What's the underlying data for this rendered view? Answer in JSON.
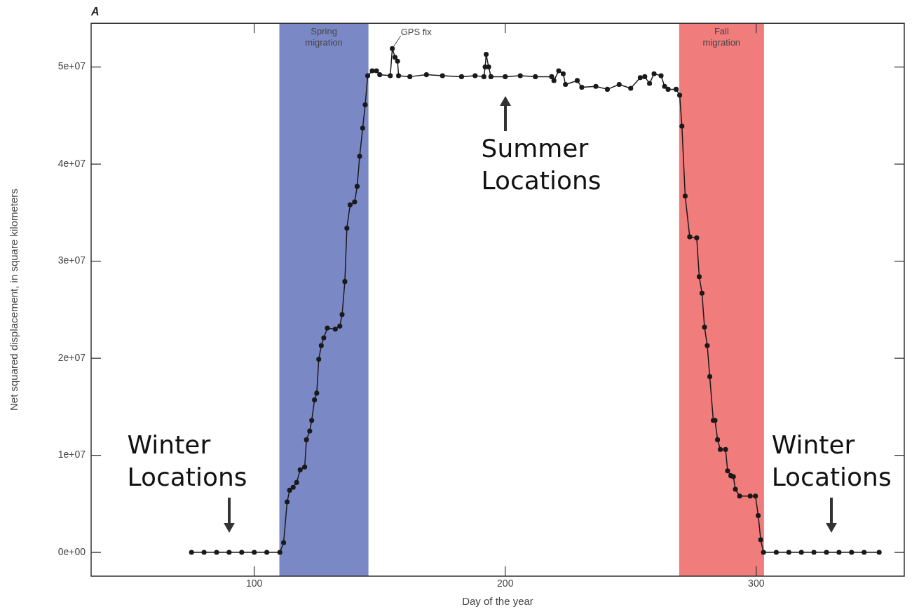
{
  "chart_data": {
    "type": "line",
    "title": "A",
    "xlabel": "Day of the year",
    "ylabel": "Net squared displacement, in square kilometers",
    "x": [
      75,
      80,
      85,
      90,
      95,
      100,
      105,
      110.2,
      111.7,
      113.1,
      114.1,
      115.5,
      116.9,
      118.3,
      120.1,
      120.8,
      122.1,
      122.9,
      124,
      124.9,
      125.7,
      126.7,
      127.7,
      129.1,
      132.3,
      134.1,
      135,
      136.1,
      136.9,
      138.2,
      140,
      141,
      142,
      143.2,
      144.2,
      145.2,
      147,
      148.7,
      150,
      154.2,
      155,
      156.1,
      157.1,
      157.5,
      162,
      168.6,
      175,
      182.6,
      188,
      191.5,
      192,
      192.4,
      193.4,
      194.3,
      200,
      206,
      212,
      218.5,
      219.4,
      221.3,
      223.1,
      224,
      228.7,
      230.5,
      236.1,
      240.7,
      245.4,
      250,
      253.8,
      255.6,
      257.5,
      259.3,
      262.1,
      263.5,
      264.9,
      268.1,
      269.5,
      270.4,
      271.7,
      273.5,
      276.3,
      277.3,
      278.4,
      279.4,
      280.5,
      281.5,
      282.9,
      283.6,
      284.6,
      285.7,
      287.8,
      288.6,
      289.9,
      290.9,
      291.7,
      293.4,
      297.6,
      299.7,
      300.8,
      301.8,
      302.9,
      308,
      313,
      318,
      323,
      328,
      333,
      338,
      343,
      349
    ],
    "values": [
      0,
      0,
      0,
      0,
      0,
      0,
      0,
      0,
      1000000,
      5200000,
      6400000,
      6700000,
      7200000,
      8500000,
      8800000,
      11600000,
      12500000,
      13600000,
      15700000,
      16400000,
      19900000,
      21300000,
      22100000,
      23100000,
      23000000,
      23300000,
      24500000,
      27900000,
      33400000,
      35800000,
      36100000,
      37700000,
      40800000,
      43700000,
      46100000,
      49100000,
      49600000,
      49600000,
      49200000,
      49100000,
      51900000,
      51000000,
      50600000,
      49100000,
      49000000,
      49200000,
      49100000,
      49000000,
      49100000,
      49000000,
      50000000,
      51300000,
      50000000,
      49000000,
      49000000,
      49100000,
      49000000,
      49000000,
      48600000,
      49600000,
      49300000,
      48200000,
      48600000,
      47900000,
      48000000,
      47700000,
      48200000,
      47800000,
      48900000,
      49000000,
      48300000,
      49300000,
      49100000,
      48000000,
      47700000,
      47700000,
      47100000,
      43900000,
      36700000,
      32500000,
      32400000,
      28400000,
      26700000,
      23200000,
      21300000,
      18100000,
      13600000,
      13600000,
      11600000,
      10600000,
      10600000,
      8400000,
      7900000,
      7800000,
      6500000,
      5800000,
      5800000,
      5800000,
      3800000,
      1300000,
      0,
      0,
      0,
      0,
      0,
      0,
      0,
      0,
      0,
      0
    ],
    "color": "#1a1a1a",
    "marker": "circle",
    "line_style": "solid",
    "grid": false,
    "legend": false,
    "xlim": [
      35,
      359
    ],
    "xticks": [
      100,
      200,
      300
    ],
    "ylim": [
      -2450000,
      54500000
    ],
    "yticks": [
      {
        "value": 0,
        "label": "0e+00"
      },
      {
        "value": 10000000,
        "label": "1e+07"
      },
      {
        "value": 20000000,
        "label": "2e+07"
      },
      {
        "value": 30000000,
        "label": "3e+07"
      },
      {
        "value": 40000000,
        "label": "4e+07"
      },
      {
        "value": 50000000,
        "label": "5e+07"
      }
    ],
    "bands": [
      {
        "axis": "x",
        "from": 110,
        "to": 145.5,
        "label": "Spring migration",
        "color": "#7b88c6"
      },
      {
        "axis": "x",
        "from": 269.3,
        "to": 303.1,
        "label": "Fall migration",
        "color": "#f07c7c"
      }
    ],
    "annotations": [
      {
        "text": "GPS fix",
        "x": 155,
        "y": 51900000
      },
      {
        "text": "Summer Locations",
        "x": 200,
        "y": 49000000
      },
      {
        "text": "Winter Locations",
        "x": 90,
        "y": 0
      },
      {
        "text": "Winter Locations",
        "x": 330,
        "y": 0
      }
    ]
  }
}
